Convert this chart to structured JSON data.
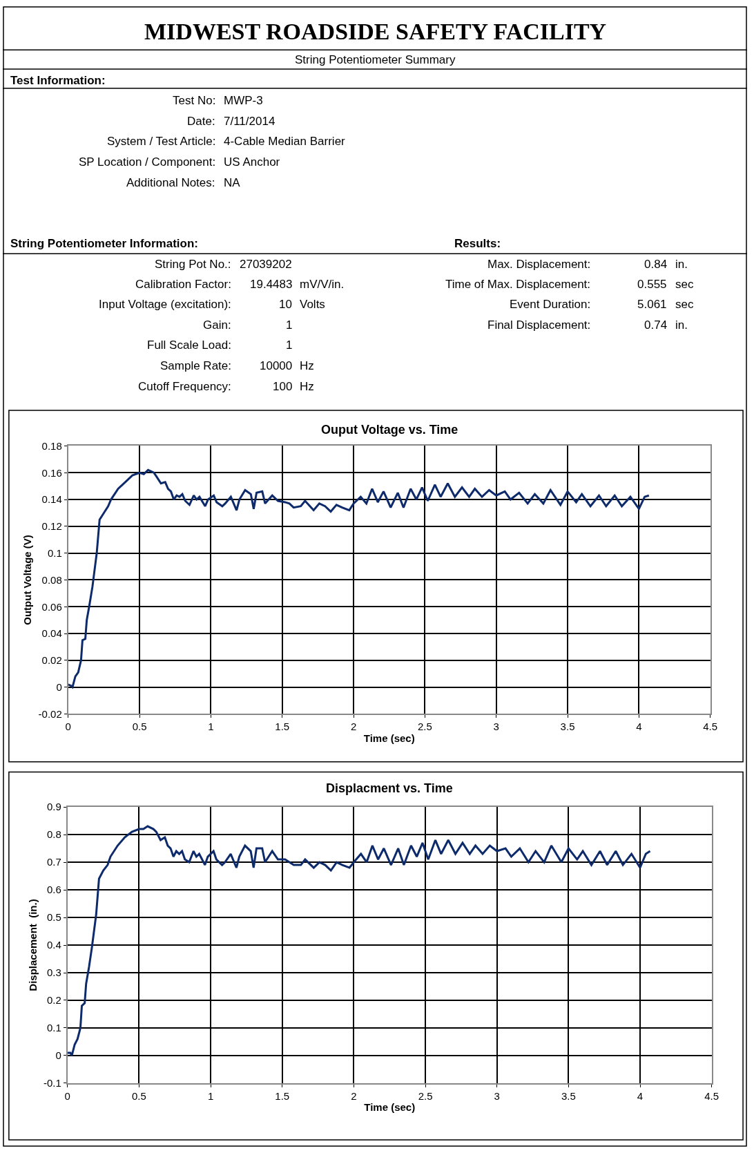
{
  "chart_data": [
    {
      "type": "other",
      "title": "MIDWEST ROADSIDE SAFETY FACILITY",
      "subtitle": "String Potentiometer Summary",
      "annotations": [
        "Test Information:",
        "Test No:",
        "MWP-3",
        "Date:",
        "7/11/2014",
        "System / Test Article:",
        "4-Cable Median Barrier",
        "SP Location / Component:",
        "US Anchor",
        "Additional Notes:",
        "NA",
        "String Potentiometer Information:",
        "Results:",
        "String Pot No.:",
        "27039202",
        "Calibration Factor:",
        "19.4483",
        "mV/V/in.",
        "Input Voltage (excitation):",
        "10",
        "Volts",
        "Gain:",
        "1",
        "Full Scale Load:",
        "1",
        "Sample Rate:",
        "10000",
        "Hz",
        "Cutoff Frequency:",
        "100",
        "Hz",
        "Max. Displacement:",
        "0.84",
        "in.",
        "Time of Max. Displacement:",
        "0.555",
        "sec",
        "Event Duration:",
        "5.061",
        "sec",
        "Final Displacement:",
        "0.74",
        "in."
      ]
    },
    {
      "type": "line",
      "title": "Ouput Voltage vs. Time",
      "xlabel": "Time (sec)",
      "ylabel": "Output Voltage (V)",
      "x": [
        0,
        0.02,
        0.03,
        0.05,
        0.07,
        0.09,
        0.1,
        0.12,
        0.13,
        0.15,
        0.17,
        0.2,
        0.22,
        0.25,
        0.28,
        0.3,
        0.35,
        0.4,
        0.45,
        0.5,
        0.53,
        0.56,
        0.6,
        0.62,
        0.65,
        0.68,
        0.7,
        0.72,
        0.74,
        0.76,
        0.78,
        0.8,
        0.82,
        0.85,
        0.88,
        0.9,
        0.92,
        0.96,
        0.98,
        1.02,
        1.04,
        1.08,
        1.1,
        1.14,
        1.18,
        1.2,
        1.24,
        1.28,
        1.3,
        1.32,
        1.36,
        1.38,
        1.43,
        1.47,
        1.52,
        1.55,
        1.58,
        1.63,
        1.66,
        1.72,
        1.76,
        1.8,
        1.84,
        1.88,
        1.92,
        1.97,
        2.0,
        2.05,
        2.09,
        2.13,
        2.17,
        2.21,
        2.26,
        2.31,
        2.35,
        2.4,
        2.44,
        2.48,
        2.52,
        2.57,
        2.61,
        2.66,
        2.71,
        2.76,
        2.81,
        2.85,
        2.9,
        2.95,
        3.0,
        3.06,
        3.1,
        3.16,
        3.22,
        3.27,
        3.33,
        3.38,
        3.45,
        3.5,
        3.56,
        3.6,
        3.66,
        3.72,
        3.77,
        3.83,
        3.88,
        3.94,
        4.0,
        4.04,
        4.07
      ],
      "series": [
        {
          "color": "#0d2a6b",
          "values": [
            0.002,
            0.001,
            0.0,
            0.008,
            0.011,
            0.02,
            0.035,
            0.036,
            0.05,
            0.062,
            0.075,
            0.1,
            0.125,
            0.13,
            0.135,
            0.14,
            0.148,
            0.153,
            0.158,
            0.16,
            0.159,
            0.162,
            0.16,
            0.157,
            0.152,
            0.153,
            0.148,
            0.146,
            0.14,
            0.143,
            0.142,
            0.144,
            0.139,
            0.136,
            0.143,
            0.14,
            0.142,
            0.135,
            0.14,
            0.143,
            0.138,
            0.135,
            0.137,
            0.142,
            0.132,
            0.14,
            0.147,
            0.144,
            0.133,
            0.145,
            0.146,
            0.137,
            0.143,
            0.139,
            0.138,
            0.137,
            0.134,
            0.135,
            0.139,
            0.132,
            0.137,
            0.135,
            0.131,
            0.136,
            0.134,
            0.132,
            0.137,
            0.142,
            0.137,
            0.148,
            0.138,
            0.146,
            0.134,
            0.145,
            0.134,
            0.148,
            0.14,
            0.149,
            0.139,
            0.151,
            0.142,
            0.152,
            0.142,
            0.149,
            0.142,
            0.148,
            0.142,
            0.147,
            0.143,
            0.146,
            0.14,
            0.145,
            0.137,
            0.144,
            0.137,
            0.147,
            0.136,
            0.146,
            0.138,
            0.144,
            0.135,
            0.143,
            0.135,
            0.143,
            0.135,
            0.142,
            0.133,
            0.142,
            0.143
          ]
        }
      ],
      "xlim": [
        0,
        4.5
      ],
      "xticks": [
        0,
        0.5,
        1,
        1.5,
        2,
        2.5,
        3,
        3.5,
        4,
        4.5
      ],
      "ylim": [
        -0.02,
        0.18
      ],
      "yticks": [
        -0.02,
        0,
        0.02,
        0.04,
        0.06,
        0.08,
        0.1,
        0.12,
        0.14,
        0.16,
        0.18
      ],
      "grid": true,
      "marker": "none",
      "line_style": "solid"
    },
    {
      "type": "line",
      "title": "Displacment vs. Time",
      "xlabel": "Time (sec)",
      "ylabel": "Displacement  (in.)",
      "x": [
        0,
        0.02,
        0.03,
        0.05,
        0.07,
        0.09,
        0.1,
        0.12,
        0.13,
        0.15,
        0.17,
        0.2,
        0.22,
        0.25,
        0.28,
        0.3,
        0.35,
        0.4,
        0.45,
        0.5,
        0.53,
        0.56,
        0.6,
        0.62,
        0.65,
        0.68,
        0.7,
        0.72,
        0.74,
        0.76,
        0.78,
        0.8,
        0.82,
        0.85,
        0.88,
        0.9,
        0.92,
        0.96,
        0.98,
        1.02,
        1.04,
        1.08,
        1.1,
        1.14,
        1.18,
        1.2,
        1.24,
        1.28,
        1.3,
        1.32,
        1.36,
        1.38,
        1.43,
        1.47,
        1.52,
        1.55,
        1.58,
        1.63,
        1.66,
        1.72,
        1.76,
        1.8,
        1.84,
        1.88,
        1.92,
        1.97,
        2.0,
        2.05,
        2.09,
        2.13,
        2.17,
        2.21,
        2.26,
        2.31,
        2.35,
        2.4,
        2.44,
        2.48,
        2.52,
        2.57,
        2.61,
        2.66,
        2.71,
        2.76,
        2.81,
        2.85,
        2.9,
        2.95,
        3.0,
        3.06,
        3.1,
        3.16,
        3.22,
        3.27,
        3.33,
        3.38,
        3.45,
        3.5,
        3.56,
        3.6,
        3.66,
        3.72,
        3.77,
        3.83,
        3.88,
        3.94,
        4.0,
        4.04,
        4.07
      ],
      "series": [
        {
          "color": "#0d2a6b",
          "values": [
            0.01,
            0.01,
            0.0,
            0.04,
            0.06,
            0.1,
            0.18,
            0.19,
            0.26,
            0.32,
            0.39,
            0.51,
            0.64,
            0.67,
            0.69,
            0.72,
            0.76,
            0.79,
            0.81,
            0.82,
            0.82,
            0.83,
            0.82,
            0.81,
            0.78,
            0.79,
            0.76,
            0.75,
            0.72,
            0.74,
            0.73,
            0.74,
            0.71,
            0.7,
            0.74,
            0.72,
            0.73,
            0.69,
            0.72,
            0.74,
            0.71,
            0.69,
            0.7,
            0.73,
            0.68,
            0.72,
            0.76,
            0.74,
            0.68,
            0.75,
            0.75,
            0.7,
            0.74,
            0.71,
            0.71,
            0.7,
            0.69,
            0.69,
            0.71,
            0.68,
            0.7,
            0.69,
            0.67,
            0.7,
            0.69,
            0.68,
            0.7,
            0.73,
            0.7,
            0.76,
            0.71,
            0.75,
            0.69,
            0.75,
            0.69,
            0.76,
            0.72,
            0.77,
            0.71,
            0.78,
            0.73,
            0.78,
            0.73,
            0.77,
            0.73,
            0.76,
            0.73,
            0.76,
            0.74,
            0.75,
            0.72,
            0.75,
            0.7,
            0.74,
            0.7,
            0.76,
            0.7,
            0.75,
            0.71,
            0.74,
            0.69,
            0.74,
            0.69,
            0.74,
            0.69,
            0.73,
            0.68,
            0.73,
            0.74
          ]
        }
      ],
      "xlim": [
        0,
        4.5
      ],
      "xticks": [
        0,
        0.5,
        1,
        1.5,
        2,
        2.5,
        3,
        3.5,
        4,
        4.5
      ],
      "ylim": [
        -0.1,
        0.9
      ],
      "yticks": [
        -0.1,
        0,
        0.1,
        0.2,
        0.3,
        0.4,
        0.5,
        0.6,
        0.7,
        0.8,
        0.9
      ],
      "grid": true,
      "marker": "none",
      "line_style": "solid"
    }
  ]
}
